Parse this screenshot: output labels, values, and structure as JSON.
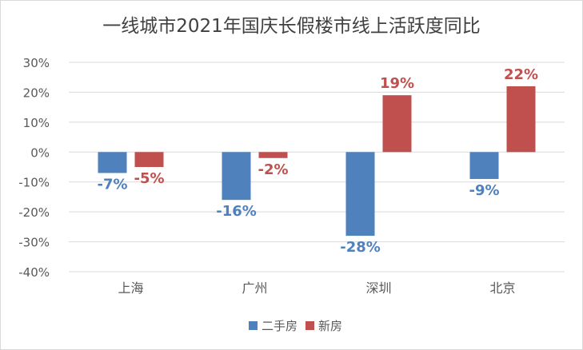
{
  "chart_data": {
    "type": "bar",
    "title": "一线城市2021年国庆长假楼市线上活跃度同比",
    "categories": [
      "上海",
      "广州",
      "深圳",
      "北京"
    ],
    "series": [
      {
        "name": "二手房",
        "color": "#4f81bd",
        "values": [
          -7,
          -16,
          -28,
          -9
        ],
        "labels": [
          "-7%",
          "-16%",
          "-28%",
          "-9%"
        ]
      },
      {
        "name": "新房",
        "color": "#c0504d",
        "values": [
          -5,
          -2,
          19,
          22
        ],
        "labels": [
          "-5%",
          "-2%",
          "19%",
          "22%"
        ]
      }
    ],
    "ylim": [
      -40,
      30
    ],
    "yticks": [
      30,
      20,
      10,
      0,
      -10,
      -20,
      -30,
      -40
    ],
    "ytick_labels": [
      "30%",
      "20%",
      "10%",
      "0%",
      "-10%",
      "-20%",
      "-30%",
      "-40%"
    ],
    "grid": true,
    "legend": "bottom"
  }
}
